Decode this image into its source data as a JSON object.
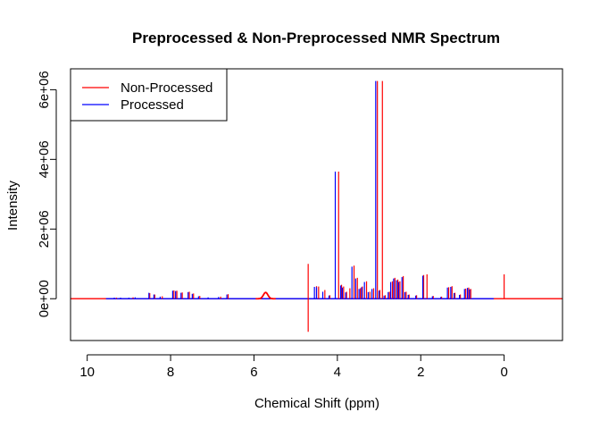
{
  "chart_data": {
    "type": "line",
    "title": "Preprocessed & Non-Preprocessed NMR Spectrum",
    "xlabel": "Chemical Shift (ppm)",
    "ylabel": "Intensity",
    "xlim": [
      10.4,
      -1.4
    ],
    "ylim": [
      -1200000,
      6600000
    ],
    "x_reversed": true,
    "x_ticks": [
      10,
      8,
      6,
      4,
      2,
      0
    ],
    "x_tick_labels": [
      "10",
      "8",
      "6",
      "4",
      "2",
      "0"
    ],
    "y_ticks": [
      0,
      2000000,
      4000000,
      6000000
    ],
    "y_tick_labels": [
      "0e+00",
      "2e+06",
      "4e+06",
      "6e+06"
    ],
    "legend": {
      "position": "top-left",
      "entries": [
        {
          "label": "Non-Processed",
          "color": "#ff0000"
        },
        {
          "label": "Processed",
          "color": "#0000ff"
        }
      ]
    },
    "baseline_range": {
      "Non-Processed": [
        10.4,
        -1.4
      ],
      "Processed": [
        9.55,
        0.25
      ]
    },
    "bumps": [
      {
        "series": "Non-Processed",
        "center": 5.72,
        "width": 0.12,
        "height": 180000
      }
    ],
    "series": [
      {
        "name": "Non-Processed",
        "color": "#ff0000",
        "peaks": [
          {
            "x": 9.3,
            "y": 30000
          },
          {
            "x": 8.9,
            "y": 40000
          },
          {
            "x": 8.5,
            "y": 160000
          },
          {
            "x": 8.38,
            "y": 120000
          },
          {
            "x": 8.2,
            "y": 70000
          },
          {
            "x": 7.92,
            "y": 240000
          },
          {
            "x": 7.85,
            "y": 230000
          },
          {
            "x": 7.72,
            "y": 180000
          },
          {
            "x": 7.55,
            "y": 200000
          },
          {
            "x": 7.45,
            "y": 150000
          },
          {
            "x": 7.3,
            "y": 80000
          },
          {
            "x": 6.8,
            "y": 60000
          },
          {
            "x": 6.62,
            "y": 130000
          },
          {
            "x": 4.7,
            "y": 1000000
          },
          {
            "x": 4.7,
            "y": -950000
          },
          {
            "x": 4.5,
            "y": 360000
          },
          {
            "x": 4.45,
            "y": 350000
          },
          {
            "x": 4.3,
            "y": 250000
          },
          {
            "x": 4.18,
            "y": 100000
          },
          {
            "x": 3.97,
            "y": 3650000
          },
          {
            "x": 3.9,
            "y": 400000
          },
          {
            "x": 3.85,
            "y": 350000
          },
          {
            "x": 3.78,
            "y": 200000
          },
          {
            "x": 3.7,
            "y": 300000
          },
          {
            "x": 3.6,
            "y": 950000
          },
          {
            "x": 3.52,
            "y": 600000
          },
          {
            "x": 3.45,
            "y": 300000
          },
          {
            "x": 3.4,
            "y": 350000
          },
          {
            "x": 3.3,
            "y": 500000
          },
          {
            "x": 3.22,
            "y": 200000
          },
          {
            "x": 3.13,
            "y": 300000
          },
          {
            "x": 3.04,
            "y": 6250000
          },
          {
            "x": 2.98,
            "y": 250000
          },
          {
            "x": 2.92,
            "y": 6250000
          },
          {
            "x": 2.85,
            "y": 100000
          },
          {
            "x": 2.75,
            "y": 200000
          },
          {
            "x": 2.68,
            "y": 500000
          },
          {
            "x": 2.62,
            "y": 600000
          },
          {
            "x": 2.55,
            "y": 550000
          },
          {
            "x": 2.5,
            "y": 500000
          },
          {
            "x": 2.42,
            "y": 650000
          },
          {
            "x": 2.35,
            "y": 200000
          },
          {
            "x": 2.28,
            "y": 120000
          },
          {
            "x": 2.1,
            "y": 100000
          },
          {
            "x": 1.93,
            "y": 680000
          },
          {
            "x": 1.85,
            "y": 700000
          },
          {
            "x": 1.7,
            "y": 80000
          },
          {
            "x": 1.5,
            "y": 60000
          },
          {
            "x": 1.33,
            "y": 330000
          },
          {
            "x": 1.25,
            "y": 360000
          },
          {
            "x": 1.18,
            "y": 170000
          },
          {
            "x": 1.05,
            "y": 120000
          },
          {
            "x": 0.92,
            "y": 290000
          },
          {
            "x": 0.85,
            "y": 320000
          },
          {
            "x": 0.8,
            "y": 280000
          },
          {
            "x": 0.0,
            "y": 700000
          }
        ]
      },
      {
        "name": "Processed",
        "color": "#0000ff",
        "peaks": [
          {
            "x": 9.35,
            "y": 30000
          },
          {
            "x": 9.2,
            "y": 30000
          },
          {
            "x": 9.0,
            "y": 30000
          },
          {
            "x": 8.85,
            "y": 40000
          },
          {
            "x": 8.52,
            "y": 170000
          },
          {
            "x": 8.4,
            "y": 120000
          },
          {
            "x": 8.25,
            "y": 60000
          },
          {
            "x": 7.95,
            "y": 230000
          },
          {
            "x": 7.88,
            "y": 220000
          },
          {
            "x": 7.75,
            "y": 170000
          },
          {
            "x": 7.58,
            "y": 190000
          },
          {
            "x": 7.48,
            "y": 140000
          },
          {
            "x": 7.33,
            "y": 70000
          },
          {
            "x": 7.1,
            "y": 40000
          },
          {
            "x": 6.85,
            "y": 50000
          },
          {
            "x": 6.65,
            "y": 120000
          },
          {
            "x": 4.55,
            "y": 340000
          },
          {
            "x": 4.5,
            "y": 330000
          },
          {
            "x": 4.35,
            "y": 200000
          },
          {
            "x": 4.2,
            "y": 90000
          },
          {
            "x": 4.05,
            "y": 3650000
          },
          {
            "x": 3.92,
            "y": 380000
          },
          {
            "x": 3.88,
            "y": 320000
          },
          {
            "x": 3.8,
            "y": 180000
          },
          {
            "x": 3.65,
            "y": 920000
          },
          {
            "x": 3.56,
            "y": 580000
          },
          {
            "x": 3.48,
            "y": 280000
          },
          {
            "x": 3.42,
            "y": 330000
          },
          {
            "x": 3.35,
            "y": 480000
          },
          {
            "x": 3.26,
            "y": 190000
          },
          {
            "x": 3.17,
            "y": 280000
          },
          {
            "x": 3.08,
            "y": 6250000
          },
          {
            "x": 3.0,
            "y": 230000
          },
          {
            "x": 2.88,
            "y": 90000
          },
          {
            "x": 2.78,
            "y": 190000
          },
          {
            "x": 2.72,
            "y": 480000
          },
          {
            "x": 2.65,
            "y": 580000
          },
          {
            "x": 2.58,
            "y": 530000
          },
          {
            "x": 2.53,
            "y": 480000
          },
          {
            "x": 2.45,
            "y": 620000
          },
          {
            "x": 2.38,
            "y": 190000
          },
          {
            "x": 2.3,
            "y": 110000
          },
          {
            "x": 2.12,
            "y": 90000
          },
          {
            "x": 1.95,
            "y": 660000
          },
          {
            "x": 1.72,
            "y": 70000
          },
          {
            "x": 1.52,
            "y": 50000
          },
          {
            "x": 1.36,
            "y": 320000
          },
          {
            "x": 1.28,
            "y": 340000
          },
          {
            "x": 1.2,
            "y": 160000
          },
          {
            "x": 1.07,
            "y": 110000
          },
          {
            "x": 0.95,
            "y": 280000
          },
          {
            "x": 0.88,
            "y": 310000
          },
          {
            "x": 0.83,
            "y": 270000
          }
        ]
      }
    ]
  }
}
